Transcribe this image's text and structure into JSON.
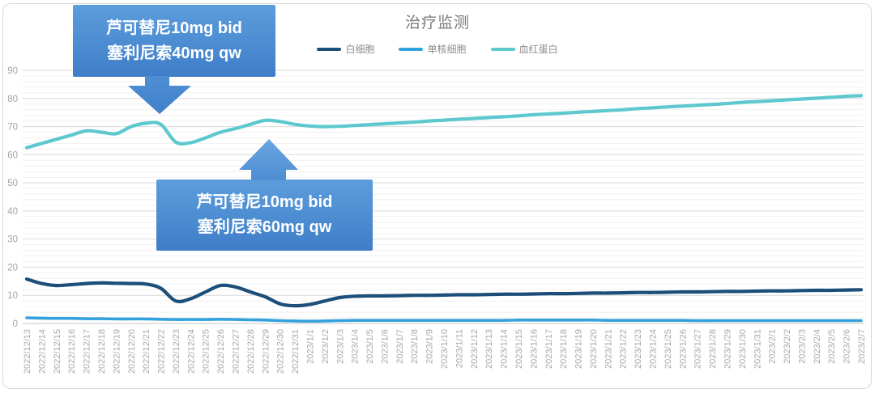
{
  "chart_data": {
    "type": "line",
    "title": "治疗监测",
    "grid": "on",
    "legend_position": "top",
    "ylim": [
      0,
      90
    ],
    "y_major_step": 10,
    "y_minor_step": 2,
    "x_label_rotation": -90,
    "categories": [
      "2022/12/13",
      "2022/12/14",
      "2022/12/15",
      "2022/12/16",
      "2022/12/17",
      "2022/12/18",
      "2022/12/19",
      "2022/12/20",
      "2022/12/21",
      "2022/12/22",
      "2022/12/23",
      "2022/12/24",
      "2022/12/25",
      "2022/12/26",
      "2022/12/27",
      "2022/12/28",
      "2022/12/29",
      "2022/12/30",
      "2022/12/31",
      "2023/1/1",
      "2023/1/2",
      "2023/1/3",
      "2023/1/4",
      "2023/1/5",
      "2023/1/6",
      "2023/1/7",
      "2023/1/8",
      "2023/1/9",
      "2023/1/10",
      "2023/1/11",
      "2023/1/12",
      "2023/1/13",
      "2023/1/14",
      "2023/1/15",
      "2023/1/16",
      "2023/1/17",
      "2023/1/18",
      "2023/1/19",
      "2023/1/20",
      "2023/1/21",
      "2023/1/22",
      "2023/1/23",
      "2023/1/24",
      "2023/1/25",
      "2023/1/26",
      "2023/1/27",
      "2023/1/28",
      "2023/1/29",
      "2023/1/30",
      "2023/1/31",
      "2023/2/1",
      "2023/2/2",
      "2023/2/3",
      "2023/2/4",
      "2023/2/5",
      "2023/2/6",
      "2023/2/7"
    ],
    "series": [
      {
        "name": "白细胞",
        "color": "#1B4E78",
        "values": [
          15.8,
          14.2,
          13.5,
          13.8,
          14.2,
          14.4,
          14.3,
          14.2,
          14.0,
          12.5,
          8.0,
          8.8,
          11.2,
          13.5,
          13.0,
          11.2,
          9.5,
          7.0,
          6.3,
          6.8,
          8.0,
          9.2,
          9.7,
          9.8,
          9.8,
          9.9,
          10.0,
          10.0,
          10.1,
          10.2,
          10.2,
          10.3,
          10.4,
          10.4,
          10.5,
          10.6,
          10.6,
          10.7,
          10.8,
          10.8,
          10.9,
          11.0,
          11.0,
          11.1,
          11.2,
          11.2,
          11.3,
          11.4,
          11.4,
          11.5,
          11.6,
          11.6,
          11.7,
          11.8,
          11.8,
          11.9,
          12.0
        ]
      },
      {
        "name": "单核细胞",
        "color": "#33A1DC",
        "values": [
          2.0,
          1.9,
          1.8,
          1.8,
          1.7,
          1.7,
          1.6,
          1.6,
          1.6,
          1.5,
          1.4,
          1.4,
          1.4,
          1.5,
          1.4,
          1.3,
          1.2,
          1.0,
          0.9,
          0.8,
          0.9,
          1.0,
          1.1,
          1.1,
          1.1,
          1.1,
          1.1,
          1.1,
          1.1,
          1.1,
          1.1,
          1.1,
          1.1,
          1.2,
          1.2,
          1.2,
          1.2,
          1.2,
          1.2,
          1.1,
          1.1,
          1.1,
          1.1,
          1.1,
          1.1,
          1.0,
          1.0,
          1.0,
          1.0,
          1.0,
          1.0,
          1.0,
          1.0,
          1.0,
          1.0,
          1.0,
          1.0
        ]
      },
      {
        "name": "血红蛋白",
        "color": "#5EC8CF",
        "values": [
          62.5,
          64.0,
          65.5,
          67.0,
          68.5,
          68.0,
          67.5,
          70.0,
          71.2,
          70.8,
          64.5,
          64.3,
          66.0,
          68.0,
          69.3,
          70.8,
          72.2,
          71.8,
          70.8,
          70.2,
          70.0,
          70.1,
          70.4,
          70.7,
          71.0,
          71.3,
          71.6,
          72.0,
          72.3,
          72.6,
          72.9,
          73.2,
          73.5,
          73.8,
          74.2,
          74.5,
          74.8,
          75.1,
          75.4,
          75.7,
          76.0,
          76.4,
          76.7,
          77.0,
          77.3,
          77.6,
          77.9,
          78.2,
          78.6,
          78.9,
          79.2,
          79.5,
          79.8,
          80.1,
          80.4,
          80.8,
          81.0
        ]
      }
    ],
    "y_tick_labels": [
      "0",
      "10",
      "20",
      "30",
      "40",
      "50",
      "60",
      "70",
      "80",
      "90"
    ]
  },
  "annotations": [
    {
      "line1": "芦可替尼10mg bid",
      "line2": "塞利尼索40mg qw",
      "arrow": "down",
      "box_color_top": "#5C9DDC",
      "box_color_bottom": "#3F7EC8"
    },
    {
      "line1": "芦可替尼10mg bid",
      "line2": "塞利尼索60mg qw",
      "arrow": "up",
      "box_color_top": "#5C9DDC",
      "box_color_bottom": "#3F7EC8"
    }
  ]
}
